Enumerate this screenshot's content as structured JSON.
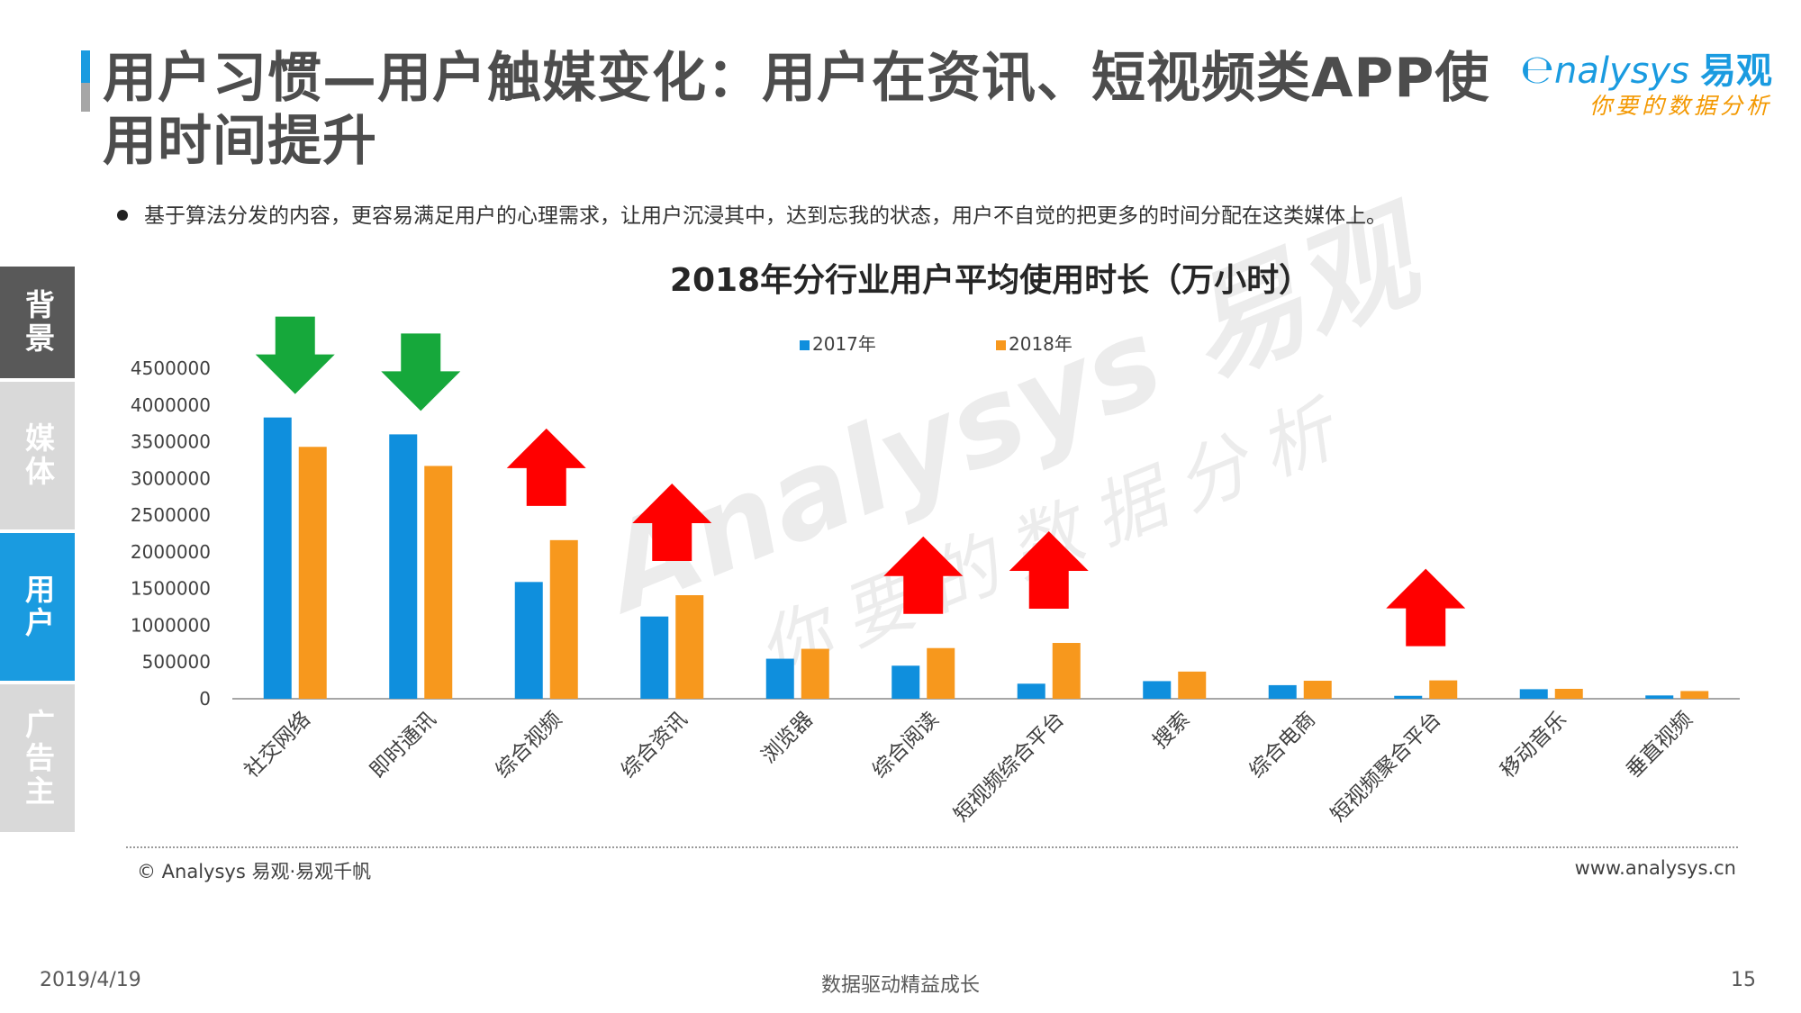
{
  "header": {
    "title": "用户习惯—用户触媒变化：用户在资讯、短视频类APP使用时间提升",
    "logo_main": "nalysys",
    "logo_cn": "易观",
    "logo_sub": "你要的数据分析"
  },
  "bullet_text": "基于算法分发的内容，更容易满足用户的心理需求，让用户沉浸其中，达到忘我的状态，用户不自觉的把更多的时间分配在这类媒体上。",
  "side_tabs": [
    {
      "label": "背景",
      "color": "#595959"
    },
    {
      "label": "媒体",
      "color": "#d9d9d9"
    },
    {
      "label": "用户",
      "color": "#1a9be0"
    },
    {
      "label": "广告主",
      "color": "#d9d9d9"
    }
  ],
  "watermark": {
    "brand": "Analysys 易观",
    "slogan": "你要的数据分析"
  },
  "colors": {
    "s2017": "#0f8fdd",
    "s2018": "#f7981d",
    "down": "#16a83b",
    "up": "#ff0000"
  },
  "chart_data": {
    "type": "bar",
    "title": "2018年分行业用户平均使用时长（万小时）",
    "xlabel": "",
    "ylabel": "",
    "ylim": [
      0,
      4500000
    ],
    "yticks": [
      "4500000",
      "4000000",
      "3500000",
      "3000000",
      "2500000",
      "2000000",
      "1500000",
      "1000000",
      "500000",
      "0"
    ],
    "grid": false,
    "legend_position": "top-center",
    "categories": [
      "社交网络",
      "即时通讯",
      "综合视频",
      "综合资讯",
      "浏览器",
      "综合阅读",
      "短视频综合平台",
      "搜索",
      "综合电商",
      "短视频聚合平台",
      "移动音乐",
      "垂直视频"
    ],
    "series": [
      {
        "name": "2017年",
        "values": [
          3830000,
          3600000,
          1590000,
          1120000,
          545000,
          450000,
          205000,
          240000,
          185000,
          40000,
          130000,
          45000
        ]
      },
      {
        "name": "2018年",
        "values": [
          3430000,
          3170000,
          2160000,
          1410000,
          680000,
          690000,
          760000,
          370000,
          245000,
          250000,
          135000,
          105000
        ]
      }
    ],
    "trend_arrows": [
      "down",
      "down",
      "up",
      "up",
      "none",
      "up",
      "up",
      "none",
      "none",
      "up",
      "none",
      "none"
    ]
  },
  "footer": {
    "copyright": "© Analysys 易观·易观千帆",
    "url": "www.analysys.cn",
    "date": "2019/4/19",
    "center": "数据驱动精益成长",
    "page": "15"
  }
}
